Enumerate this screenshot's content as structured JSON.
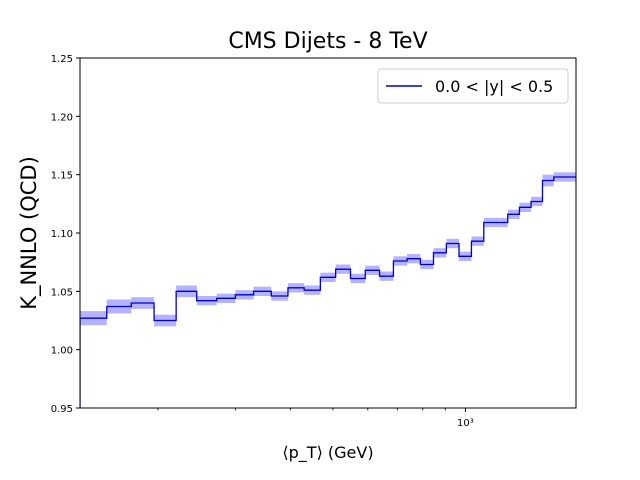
{
  "chart_data": {
    "type": "line",
    "title": "CMS Dijets - 8 TeV",
    "xlabel": "⟨p_T⟩ (GeV)",
    "ylabel": "K_NNLO (QCD)",
    "x_scale": "log",
    "xlim": [
      133,
      1784
    ],
    "ylim": [
      0.95,
      1.25
    ],
    "yticks": [
      "0.95",
      "1.00",
      "1.05",
      "1.10",
      "1.15",
      "1.20",
      "1.25"
    ],
    "xticks": [
      {
        "value": 1000,
        "label": "10³"
      }
    ],
    "legend": {
      "position": "top-right"
    },
    "grid": false,
    "series": [
      {
        "name": "0.0 < |y| < 0.5",
        "color": "#0000cc",
        "band_color": "#b3b3ff",
        "style": "step",
        "bins": [
          {
            "lo": 133,
            "hi": 153,
            "value": 1.027,
            "err": 0.006
          },
          {
            "lo": 153,
            "hi": 174,
            "value": 1.037,
            "err": 0.006
          },
          {
            "lo": 174,
            "hi": 196,
            "value": 1.04,
            "err": 0.005
          },
          {
            "lo": 196,
            "hi": 220,
            "value": 1.025,
            "err": 0.005
          },
          {
            "lo": 220,
            "hi": 245,
            "value": 1.05,
            "err": 0.005
          },
          {
            "lo": 245,
            "hi": 272,
            "value": 1.042,
            "err": 0.004
          },
          {
            "lo": 272,
            "hi": 300,
            "value": 1.044,
            "err": 0.004
          },
          {
            "lo": 300,
            "hi": 330,
            "value": 1.047,
            "err": 0.004
          },
          {
            "lo": 330,
            "hi": 362,
            "value": 1.05,
            "err": 0.004
          },
          {
            "lo": 362,
            "hi": 395,
            "value": 1.046,
            "err": 0.004
          },
          {
            "lo": 395,
            "hi": 430,
            "value": 1.053,
            "err": 0.004
          },
          {
            "lo": 430,
            "hi": 468,
            "value": 1.051,
            "err": 0.004
          },
          {
            "lo": 468,
            "hi": 507,
            "value": 1.062,
            "err": 0.004
          },
          {
            "lo": 507,
            "hi": 548,
            "value": 1.069,
            "err": 0.004
          },
          {
            "lo": 548,
            "hi": 592,
            "value": 1.061,
            "err": 0.004
          },
          {
            "lo": 592,
            "hi": 638,
            "value": 1.068,
            "err": 0.004
          },
          {
            "lo": 638,
            "hi": 686,
            "value": 1.063,
            "err": 0.004
          },
          {
            "lo": 686,
            "hi": 737,
            "value": 1.076,
            "err": 0.004
          },
          {
            "lo": 737,
            "hi": 790,
            "value": 1.078,
            "err": 0.004
          },
          {
            "lo": 790,
            "hi": 846,
            "value": 1.073,
            "err": 0.004
          },
          {
            "lo": 846,
            "hi": 905,
            "value": 1.083,
            "err": 0.004
          },
          {
            "lo": 905,
            "hi": 967,
            "value": 1.091,
            "err": 0.004
          },
          {
            "lo": 967,
            "hi": 1032,
            "value": 1.08,
            "err": 0.004
          },
          {
            "lo": 1032,
            "hi": 1101,
            "value": 1.093,
            "err": 0.004
          },
          {
            "lo": 1101,
            "hi": 1248,
            "value": 1.109,
            "err": 0.004
          },
          {
            "lo": 1248,
            "hi": 1327,
            "value": 1.116,
            "err": 0.004
          },
          {
            "lo": 1327,
            "hi": 1410,
            "value": 1.122,
            "err": 0.004
          },
          {
            "lo": 1410,
            "hi": 1497,
            "value": 1.127,
            "err": 0.004
          },
          {
            "lo": 1497,
            "hi": 1588,
            "value": 1.145,
            "err": 0.005
          },
          {
            "lo": 1588,
            "hi": 1784,
            "value": 1.148,
            "err": 0.004
          }
        ]
      }
    ]
  }
}
